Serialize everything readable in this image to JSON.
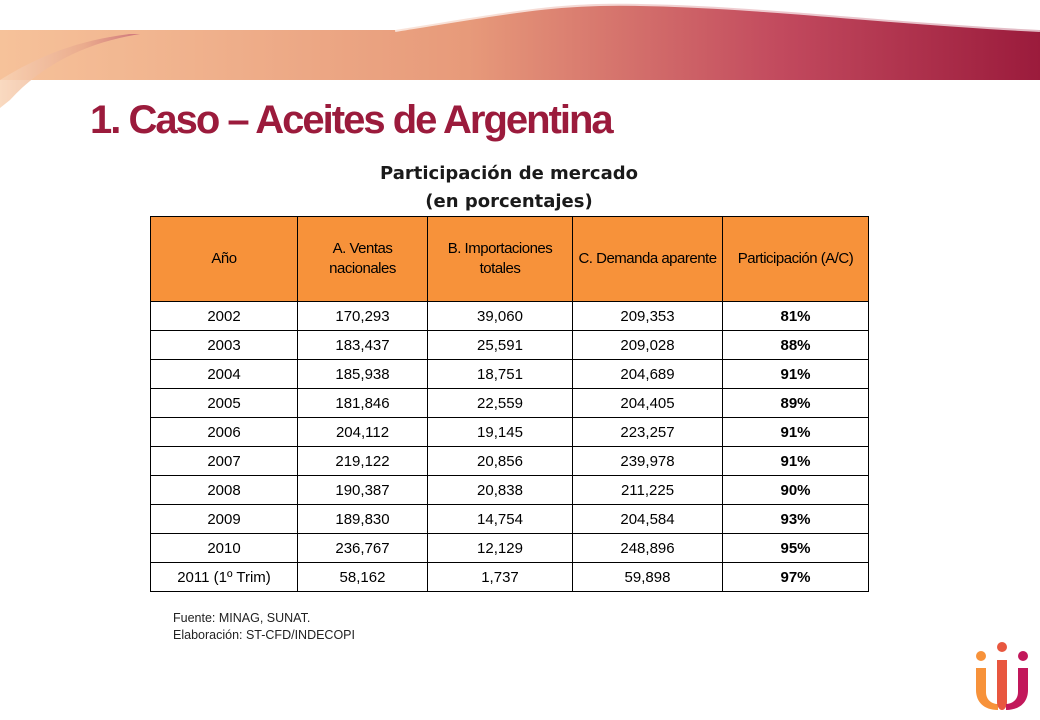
{
  "slide": {
    "title": "1. Caso – Aceites de Argentina"
  },
  "table_caption": {
    "line1": "Participación de mercado",
    "line2": "(en porcentajes)"
  },
  "table": {
    "headers": [
      "Año",
      "A. Ventas nacionales",
      "B. Importaciones totales",
      "C. Demanda aparente",
      "Participación (A/C)"
    ],
    "rows": [
      [
        "2002",
        "170,293",
        "39,060",
        "209,353",
        "81%"
      ],
      [
        "2003",
        "183,437",
        "25,591",
        "209,028",
        "88%"
      ],
      [
        "2004",
        "185,938",
        "18,751",
        "204,689",
        "91%"
      ],
      [
        "2005",
        "181,846",
        "22,559",
        "204,405",
        "89%"
      ],
      [
        "2006",
        "204,112",
        "19,145",
        "223,257",
        "91%"
      ],
      [
        "2007",
        "219,122",
        "20,856",
        "239,978",
        "91%"
      ],
      [
        "2008",
        "190,387",
        "20,838",
        "211,225",
        "90%"
      ],
      [
        "2009",
        "189,830",
        "14,754",
        "204,584",
        "93%"
      ],
      [
        "2010",
        "236,767",
        "12,129",
        "248,896",
        "95%"
      ],
      [
        "2011 (1º Trim)",
        "58,162",
        "1,737",
        "59,898",
        "97%"
      ]
    ]
  },
  "source": {
    "line1": "Fuente: MINAG, SUNAT.",
    "line2": "Elaboración: ST-CFD/INDECOPI"
  },
  "colors": {
    "title": "#9b1b3c",
    "header_fill": "#f7923a",
    "banner_light": "#f4b183",
    "banner_dark": "#9b1b3c"
  },
  "icons": {
    "logo": "indecopi-logo"
  }
}
